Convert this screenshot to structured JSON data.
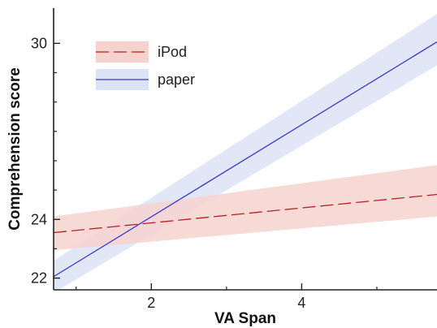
{
  "chart_data": {
    "type": "line",
    "xlabel": "VA Span",
    "ylabel": "Comprehension score",
    "xlim": [
      0.7,
      5.8
    ],
    "ylim": [
      21.6,
      31.2
    ],
    "xticks": [
      {
        "value": 2,
        "label": "2"
      },
      {
        "value": 4,
        "label": "4"
      }
    ],
    "yticks": [
      {
        "value": 22,
        "label": "22"
      },
      {
        "value": 24,
        "label": "24"
      },
      {
        "value": 30,
        "label": "30"
      }
    ],
    "legend_position": "top-left",
    "series": [
      {
        "name": "iPod",
        "color": "#b22222",
        "band_color": "#f6d2cf",
        "dash": "dashed",
        "x": [
          0.7,
          5.8
        ],
        "y": [
          23.55,
          24.85
        ],
        "band_lower": [
          22.95,
          24.1
        ],
        "band_upper": [
          24.1,
          25.85
        ]
      },
      {
        "name": "paper",
        "color": "#3b3bcf",
        "band_color": "#dce3f4",
        "dash": "solid",
        "x": [
          0.7,
          5.8
        ],
        "y": [
          22.05,
          30.05
        ],
        "band_lower": [
          21.5,
          29.25
        ],
        "band_upper": [
          22.6,
          31.0
        ]
      }
    ]
  }
}
